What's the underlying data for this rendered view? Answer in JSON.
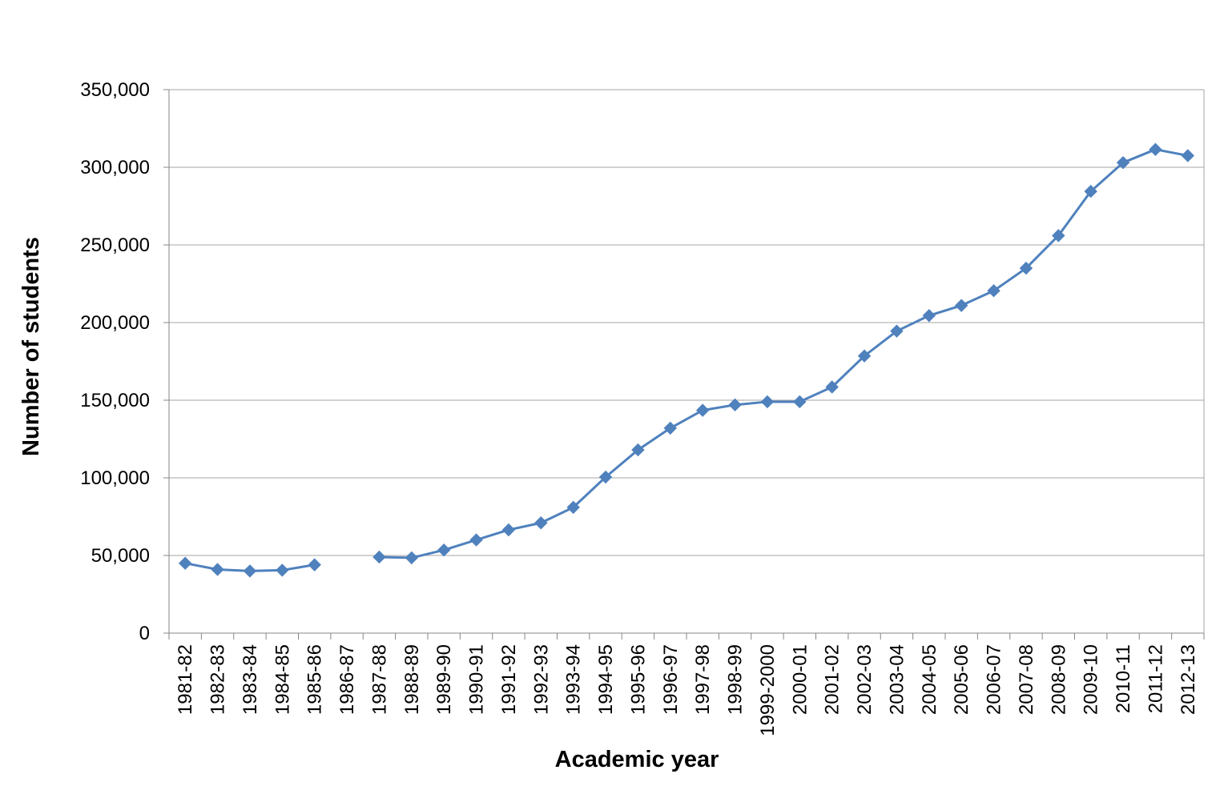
{
  "chart_data": {
    "type": "line",
    "title": "",
    "xlabel": "Academic year",
    "ylabel": "Number of students",
    "ylim": [
      0,
      350000
    ],
    "yticks": [
      0,
      50000,
      100000,
      150000,
      200000,
      250000,
      300000,
      350000
    ],
    "ytick_labels": [
      "0",
      "50,000",
      "100,000",
      "150,000",
      "200,000",
      "250,000",
      "300,000",
      "350,000"
    ],
    "grid": true,
    "legend": "none",
    "colors": {
      "series": "#4F81BD",
      "grid": "#A6A6A6",
      "axis": "#868686"
    },
    "categories": [
      "1981-82",
      "1982-83",
      "1983-84",
      "1984-85",
      "1985-86",
      "1986-87",
      "1987-88",
      "1988-89",
      "1989-90",
      "1990-91",
      "1991-92",
      "1992-93",
      "1993-94",
      "1994-95",
      "1995-96",
      "1996-97",
      "1997-98",
      "1998-99",
      "1999-2000",
      "2000-01",
      "2001-02",
      "2002-03",
      "2003-04",
      "2004-05",
      "2005-06",
      "2006-07",
      "2007-08",
      "2008-09",
      "2009-10",
      "2010-11",
      "2011-12",
      "2012-13"
    ],
    "series": [
      {
        "marker": "diamond",
        "values": [
          45000,
          41000,
          40000,
          40500,
          44000,
          null,
          49000,
          48500,
          53500,
          60000,
          66500,
          71000,
          81000,
          100500,
          118000,
          132000,
          143500,
          147000,
          149000,
          149000,
          158500,
          178500,
          194500,
          204500,
          211000,
          220500,
          235000,
          256000,
          284500,
          303000,
          311500,
          307500
        ]
      }
    ]
  }
}
